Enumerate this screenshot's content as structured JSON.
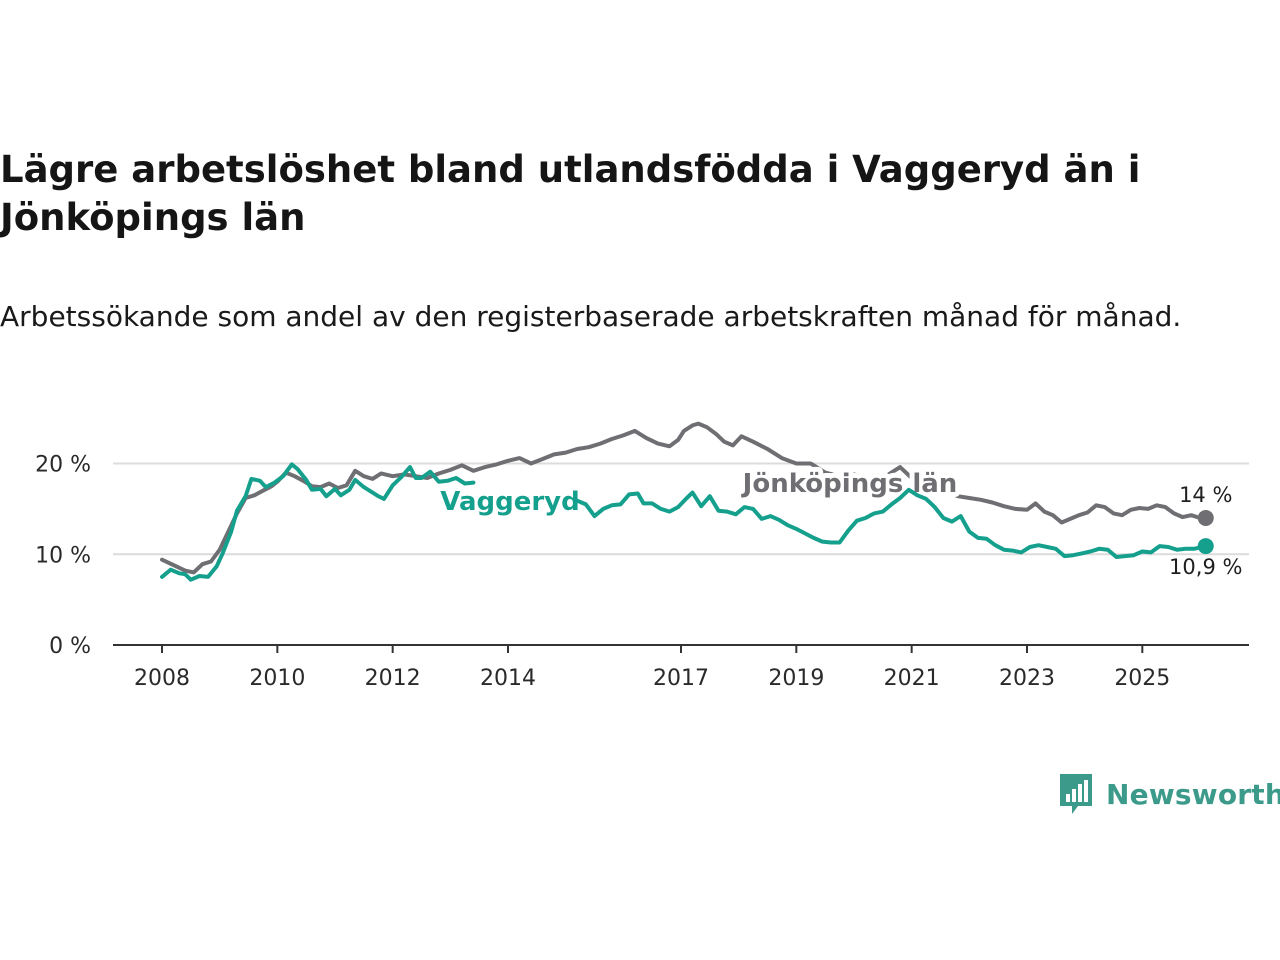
{
  "header": {
    "title": "Lägre arbetslöshet bland utlandsfödda i Vaggeryd än i Jönköpings län",
    "subtitle": "Arbetssökande som andel av den registerbaserade arbetskraften månad för månad."
  },
  "brand": {
    "name": "Newsworthy",
    "color": "#3b9a8a"
  },
  "colors": {
    "vaggeryd": "#15a08e",
    "lan": "#6f6e73",
    "grid": "#dcdcdc",
    "axis": "#333333"
  },
  "chart_data": {
    "type": "line",
    "title": "Lägre arbetslöshet bland utlandsfödda i Vaggeryd än i Jönköpings län",
    "xlabel": "",
    "ylabel": "",
    "x_ticks": [
      2008,
      2010,
      2012,
      2014,
      2017,
      2019,
      2021,
      2023,
      2025
    ],
    "x_tick_labels": [
      "2008",
      "2010",
      "2012",
      "2014",
      "2017",
      "2019",
      "2021",
      "2023",
      "2025"
    ],
    "y_ticks": [
      0,
      10,
      20
    ],
    "y_tick_labels": [
      "0 %",
      "10 %",
      "20 %"
    ],
    "xlim": [
      2007.15,
      2026.85
    ],
    "ylim": [
      0,
      27
    ],
    "grid": true,
    "series": [
      {
        "name": "Jönköpings län",
        "label": "Jönköpings län",
        "end_label": "14 %",
        "points": [
          [
            2008.0,
            9.4
          ],
          [
            2008.2,
            8.8
          ],
          [
            2008.4,
            8.2
          ],
          [
            2008.55,
            8.0
          ],
          [
            2008.7,
            8.9
          ],
          [
            2008.85,
            9.2
          ],
          [
            2009.0,
            10.5
          ],
          [
            2009.15,
            12.5
          ],
          [
            2009.3,
            14.5
          ],
          [
            2009.45,
            16.2
          ],
          [
            2009.6,
            16.5
          ],
          [
            2009.75,
            17.0
          ],
          [
            2009.9,
            17.5
          ],
          [
            2010.0,
            18.0
          ],
          [
            2010.15,
            19.0
          ],
          [
            2010.3,
            18.6
          ],
          [
            2010.45,
            18.1
          ],
          [
            2010.6,
            17.5
          ],
          [
            2010.75,
            17.4
          ],
          [
            2010.9,
            17.8
          ],
          [
            2011.05,
            17.3
          ],
          [
            2011.2,
            17.6
          ],
          [
            2011.35,
            19.2
          ],
          [
            2011.5,
            18.6
          ],
          [
            2011.65,
            18.3
          ],
          [
            2011.8,
            18.9
          ],
          [
            2012.0,
            18.6
          ],
          [
            2012.2,
            18.8
          ],
          [
            2012.4,
            18.6
          ],
          [
            2012.6,
            18.4
          ],
          [
            2012.8,
            18.9
          ],
          [
            2013.0,
            19.3
          ],
          [
            2013.2,
            19.8
          ],
          [
            2013.4,
            19.2
          ],
          [
            2013.6,
            19.6
          ],
          [
            2013.8,
            19.9
          ],
          [
            2014.0,
            20.3
          ],
          [
            2014.2,
            20.6
          ],
          [
            2014.4,
            20.0
          ],
          [
            2014.6,
            20.5
          ],
          [
            2014.8,
            21.0
          ],
          [
            2015.0,
            21.2
          ],
          [
            2015.2,
            21.6
          ],
          [
            2015.4,
            21.8
          ],
          [
            2015.6,
            22.2
          ],
          [
            2015.8,
            22.7
          ],
          [
            2016.0,
            23.1
          ],
          [
            2016.2,
            23.6
          ],
          [
            2016.4,
            22.8
          ],
          [
            2016.6,
            22.2
          ],
          [
            2016.8,
            21.9
          ],
          [
            2016.95,
            22.6
          ],
          [
            2017.05,
            23.6
          ],
          [
            2017.2,
            24.2
          ],
          [
            2017.3,
            24.4
          ],
          [
            2017.45,
            24.0
          ],
          [
            2017.6,
            23.3
          ],
          [
            2017.75,
            22.4
          ],
          [
            2017.9,
            22.0
          ],
          [
            2018.05,
            23.0
          ],
          [
            2018.25,
            22.4
          ],
          [
            2018.5,
            21.6
          ],
          [
            2018.75,
            20.6
          ],
          [
            2019.0,
            20.0
          ],
          [
            2019.25,
            20.0
          ],
          [
            2019.5,
            19.0
          ],
          [
            2019.75,
            18.6
          ],
          [
            2020.0,
            18.8
          ],
          [
            2020.2,
            18.4
          ],
          [
            2020.4,
            18.0
          ],
          [
            2020.6,
            18.8
          ],
          [
            2020.8,
            19.6
          ],
          [
            2021.0,
            18.4
          ],
          [
            2021.2,
            17.9
          ],
          [
            2021.4,
            17.4
          ],
          [
            2021.6,
            16.9
          ],
          [
            2021.8,
            16.4
          ],
          [
            2022.0,
            16.2
          ],
          [
            2022.2,
            16.0
          ],
          [
            2022.4,
            15.7
          ],
          [
            2022.6,
            15.3
          ],
          [
            2022.8,
            15.0
          ],
          [
            2023.0,
            14.9
          ],
          [
            2023.15,
            15.6
          ],
          [
            2023.3,
            14.7
          ],
          [
            2023.45,
            14.3
          ],
          [
            2023.6,
            13.5
          ],
          [
            2023.75,
            13.9
          ],
          [
            2023.9,
            14.3
          ],
          [
            2024.05,
            14.6
          ],
          [
            2024.2,
            15.4
          ],
          [
            2024.35,
            15.2
          ],
          [
            2024.5,
            14.5
          ],
          [
            2024.65,
            14.3
          ],
          [
            2024.8,
            14.9
          ],
          [
            2024.95,
            15.1
          ],
          [
            2025.1,
            15.0
          ],
          [
            2025.25,
            15.4
          ],
          [
            2025.4,
            15.2
          ],
          [
            2025.55,
            14.5
          ],
          [
            2025.7,
            14.1
          ],
          [
            2025.85,
            14.3
          ],
          [
            2026.0,
            14.0
          ],
          [
            2026.1,
            14.0
          ]
        ]
      },
      {
        "name": "Vaggeryd",
        "label": "Vaggeryd",
        "end_label": "10,9 %",
        "points": [
          [
            2008.0,
            7.5
          ],
          [
            2008.15,
            8.3
          ],
          [
            2008.3,
            7.9
          ],
          [
            2008.4,
            7.8
          ],
          [
            2008.5,
            7.2
          ],
          [
            2008.65,
            7.6
          ],
          [
            2008.8,
            7.5
          ],
          [
            2008.95,
            8.7
          ],
          [
            2009.05,
            10.1
          ],
          [
            2009.2,
            12.5
          ],
          [
            2009.3,
            14.8
          ],
          [
            2009.45,
            16.4
          ],
          [
            2009.55,
            18.3
          ],
          [
            2009.7,
            18.1
          ],
          [
            2009.8,
            17.4
          ],
          [
            2009.95,
            17.9
          ],
          [
            2010.1,
            18.6
          ],
          [
            2010.25,
            19.9
          ],
          [
            2010.35,
            19.4
          ],
          [
            2010.5,
            18.2
          ],
          [
            2010.6,
            17.1
          ],
          [
            2010.75,
            17.2
          ],
          [
            2010.85,
            16.4
          ],
          [
            2011.0,
            17.2
          ],
          [
            2011.1,
            16.5
          ],
          [
            2011.25,
            17.1
          ],
          [
            2011.35,
            18.2
          ],
          [
            2011.5,
            17.4
          ],
          [
            2011.6,
            17.0
          ],
          [
            2011.75,
            16.4
          ],
          [
            2011.85,
            16.1
          ],
          [
            2012.0,
            17.6
          ],
          [
            2012.15,
            18.5
          ],
          [
            2012.3,
            19.6
          ],
          [
            2012.4,
            18.4
          ],
          [
            2012.5,
            18.4
          ],
          [
            2012.65,
            19.1
          ],
          [
            2012.8,
            18.0
          ],
          [
            2012.95,
            18.1
          ],
          [
            2013.1,
            18.4
          ],
          [
            2013.25,
            17.8
          ],
          [
            2013.4,
            17.9
          ],
          [
            2015.2,
            15.9
          ],
          [
            2015.35,
            15.5
          ],
          [
            2015.5,
            14.2
          ],
          [
            2015.65,
            15.0
          ],
          [
            2015.8,
            15.4
          ],
          [
            2015.95,
            15.5
          ],
          [
            2016.1,
            16.6
          ],
          [
            2016.25,
            16.7
          ],
          [
            2016.35,
            15.6
          ],
          [
            2016.5,
            15.6
          ],
          [
            2016.65,
            15.0
          ],
          [
            2016.8,
            14.7
          ],
          [
            2016.95,
            15.2
          ],
          [
            2017.1,
            16.2
          ],
          [
            2017.2,
            16.8
          ],
          [
            2017.35,
            15.3
          ],
          [
            2017.5,
            16.4
          ],
          [
            2017.65,
            14.8
          ],
          [
            2017.8,
            14.7
          ],
          [
            2017.95,
            14.4
          ],
          [
            2018.1,
            15.2
          ],
          [
            2018.25,
            15.0
          ],
          [
            2018.4,
            13.9
          ],
          [
            2018.55,
            14.2
          ],
          [
            2018.7,
            13.8
          ],
          [
            2018.85,
            13.2
          ],
          [
            2019.0,
            12.8
          ],
          [
            2019.15,
            12.3
          ],
          [
            2019.3,
            11.8
          ],
          [
            2019.45,
            11.4
          ],
          [
            2019.6,
            11.3
          ],
          [
            2019.75,
            11.3
          ],
          [
            2019.9,
            12.6
          ],
          [
            2020.05,
            13.7
          ],
          [
            2020.2,
            14.0
          ],
          [
            2020.35,
            14.5
          ],
          [
            2020.5,
            14.7
          ],
          [
            2020.65,
            15.5
          ],
          [
            2020.8,
            16.2
          ],
          [
            2020.95,
            17.1
          ],
          [
            2021.1,
            16.5
          ],
          [
            2021.25,
            16.1
          ],
          [
            2021.4,
            15.2
          ],
          [
            2021.55,
            14.0
          ],
          [
            2021.7,
            13.6
          ],
          [
            2021.85,
            14.2
          ],
          [
            2022.0,
            12.5
          ],
          [
            2022.15,
            11.8
          ],
          [
            2022.3,
            11.7
          ],
          [
            2022.45,
            11.0
          ],
          [
            2022.6,
            10.5
          ],
          [
            2022.75,
            10.4
          ],
          [
            2022.9,
            10.2
          ],
          [
            2023.05,
            10.8
          ],
          [
            2023.2,
            11.0
          ],
          [
            2023.35,
            10.8
          ],
          [
            2023.5,
            10.6
          ],
          [
            2023.65,
            9.8
          ],
          [
            2023.8,
            9.9
          ],
          [
            2023.95,
            10.1
          ],
          [
            2024.1,
            10.3
          ],
          [
            2024.25,
            10.6
          ],
          [
            2024.4,
            10.5
          ],
          [
            2024.55,
            9.7
          ],
          [
            2024.7,
            9.8
          ],
          [
            2024.85,
            9.9
          ],
          [
            2025.0,
            10.3
          ],
          [
            2025.15,
            10.2
          ],
          [
            2025.3,
            10.9
          ],
          [
            2025.45,
            10.8
          ],
          [
            2025.6,
            10.5
          ],
          [
            2025.75,
            10.6
          ],
          [
            2025.9,
            10.6
          ],
          [
            2026.1,
            10.9
          ]
        ]
      }
    ]
  }
}
